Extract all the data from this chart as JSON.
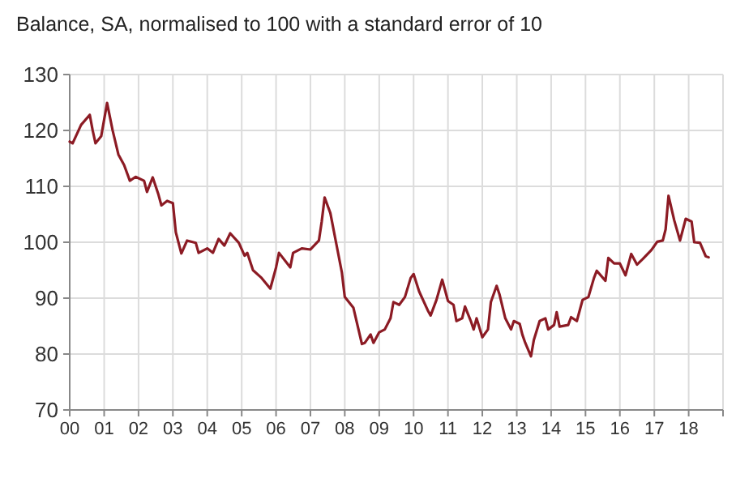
{
  "chart_data": {
    "type": "line",
    "title": "Balance, SA, normalised to 100 with a standard error of 10",
    "xlim": [
      "2000-01",
      "2019-01"
    ],
    "ylim": [
      70,
      130
    ],
    "yticks": [
      70,
      80,
      90,
      100,
      110,
      120,
      130
    ],
    "grid": true,
    "xticks": [
      {
        "value": "2000",
        "label": "00"
      },
      {
        "value": "2001",
        "label": "01"
      },
      {
        "value": "2002",
        "label": "02"
      },
      {
        "value": "2003",
        "label": "03"
      },
      {
        "value": "2004",
        "label": "04"
      },
      {
        "value": "2005",
        "label": "05"
      },
      {
        "value": "2006",
        "label": "06"
      },
      {
        "value": "2007",
        "label": "07"
      },
      {
        "value": "2008",
        "label": "08"
      },
      {
        "value": "2009",
        "label": "09"
      },
      {
        "value": "2010",
        "label": "10"
      },
      {
        "value": "2011",
        "label": "11"
      },
      {
        "value": "2012",
        "label": "12"
      },
      {
        "value": "2013",
        "label": "13"
      },
      {
        "value": "2014",
        "label": "14"
      },
      {
        "value": "2015",
        "label": "15"
      },
      {
        "value": "2016",
        "label": "16"
      },
      {
        "value": "2017",
        "label": "17"
      },
      {
        "value": "2018",
        "label": "18"
      },
      {
        "value": "2019",
        "label": null
      }
    ],
    "series": [
      {
        "color": "#8c1b24",
        "x": [
          "2000-01",
          "2000-02",
          "2000-05",
          "2000-08",
          "2000-09",
          "2000-10",
          "2000-12",
          "2001-02",
          "2001-04",
          "2001-06",
          "2001-08",
          "2001-10",
          "2001-12",
          "2002-03",
          "2002-04",
          "2002-06",
          "2002-08",
          "2002-09",
          "2002-11",
          "2003-01",
          "2003-02",
          "2003-04",
          "2003-06",
          "2003-09",
          "2003-10",
          "2004-01",
          "2004-03",
          "2004-05",
          "2004-07",
          "2004-09",
          "2004-12",
          "2005-02",
          "2005-03",
          "2005-05",
          "2005-08",
          "2005-11",
          "2006-01",
          "2006-02",
          "2006-06",
          "2006-07",
          "2006-10",
          "2007-01",
          "2007-04",
          "2007-05",
          "2007-06",
          "2007-08",
          "2007-10",
          "2007-12",
          "2008-01",
          "2008-04",
          "2008-07",
          "2008-08",
          "2008-10",
          "2008-11",
          "2009-01",
          "2009-03",
          "2009-05",
          "2009-06",
          "2009-08",
          "2009-10",
          "2009-12",
          "2010-01",
          "2010-03",
          "2010-06",
          "2010-07",
          "2010-09",
          "2010-11",
          "2011-01",
          "2011-03",
          "2011-04",
          "2011-06",
          "2011-07",
          "2011-09",
          "2011-10",
          "2011-11",
          "2012-01",
          "2012-03",
          "2012-04",
          "2012-06",
          "2012-07",
          "2012-09",
          "2012-11",
          "2012-12",
          "2013-02",
          "2013-03",
          "2013-04",
          "2013-06",
          "2013-07",
          "2013-09",
          "2013-11",
          "2013-12",
          "2014-02",
          "2014-03",
          "2014-04",
          "2014-07",
          "2014-08",
          "2014-10",
          "2014-12",
          "2015-02",
          "2015-04",
          "2015-05",
          "2015-08",
          "2015-09",
          "2015-11",
          "2016-01",
          "2016-03",
          "2016-05",
          "2016-07",
          "2016-09",
          "2016-12",
          "2017-02",
          "2017-04",
          "2017-05",
          "2017-06",
          "2017-08",
          "2017-10",
          "2017-12",
          "2018-02",
          "2018-03",
          "2018-05",
          "2018-07",
          "2018-08"
        ],
        "values": [
          118,
          117.7,
          121,
          122.8,
          120,
          117.7,
          119,
          124.9,
          120,
          115.7,
          113.8,
          111,
          111.7,
          111,
          109,
          111.6,
          108.5,
          106.6,
          107.4,
          107,
          101.8,
          98,
          100.3,
          99.9,
          98.1,
          98.9,
          98.1,
          100.6,
          99.4,
          101.6,
          99.9,
          97.6,
          98.1,
          95,
          93.6,
          91.7,
          95.5,
          98.1,
          95.5,
          98.1,
          98.9,
          98.7,
          100.3,
          103.7,
          108,
          105.2,
          99.9,
          94.6,
          90.2,
          88.3,
          81.8,
          82,
          83.5,
          82,
          83.9,
          84.4,
          86.4,
          89.3,
          88.8,
          90.2,
          93.6,
          94.3,
          91.2,
          87.8,
          86.9,
          89.7,
          93.3,
          89.5,
          88.8,
          85.9,
          86.4,
          88.5,
          85.9,
          84.4,
          86.4,
          83,
          84.4,
          89.3,
          92.2,
          90.7,
          86.4,
          84.4,
          85.9,
          85.4,
          83.5,
          82,
          79.6,
          82.5,
          85.9,
          86.4,
          84.4,
          85.2,
          87.5,
          84.9,
          85.2,
          86.6,
          85.9,
          89.7,
          90.2,
          93.6,
          94.9,
          93.1,
          97.2,
          96.2,
          96.2,
          94.1,
          97.9,
          96,
          97,
          98.6,
          100.1,
          100.3,
          102.3,
          108.3,
          103.9,
          100.3,
          104.2,
          103.7,
          100,
          99.9,
          97.5,
          97.3
        ]
      }
    ]
  }
}
